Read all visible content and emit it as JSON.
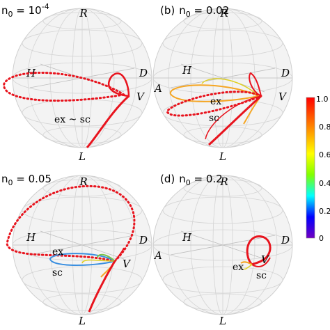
{
  "panels": [
    {
      "label": "",
      "n0_prefix": "n",
      "n0_sub": "0",
      "n0_value": " = 10",
      "n0_sup": "-4",
      "axes": {
        "R": "R",
        "L": "L",
        "H": "H",
        "D": "D",
        "V": "V",
        "A": ""
      },
      "curve_labels": [
        "ex ~ sc"
      ]
    },
    {
      "label": "(b)",
      "n0_prefix": "n",
      "n0_sub": "0",
      "n0_value": " = 0.02",
      "n0_sup": "",
      "axes": {
        "R": "R",
        "L": "L",
        "H": "H",
        "D": "D",
        "V": "V",
        "A": "A"
      },
      "curve_labels": [
        "ex",
        "sc"
      ]
    },
    {
      "label": "",
      "n0_prefix": "n",
      "n0_sub": "0",
      "n0_value": " = 0.05",
      "n0_sup": "",
      "axes": {
        "R": "R",
        "L": "L",
        "H": "H",
        "D": "D",
        "V": "V",
        "A": ""
      },
      "curve_labels": [
        "ex",
        "sc"
      ]
    },
    {
      "label": "(d)",
      "n0_prefix": "n",
      "n0_sub": "0",
      "n0_value": " = 0.2",
      "n0_sup": "",
      "axes": {
        "R": "R",
        "L": "L",
        "H": "H",
        "D": "D",
        "V": "V",
        "A": "A"
      },
      "curve_labels": [
        "ex",
        "V",
        "sc"
      ]
    }
  ],
  "colorbar": {
    "ticks": [
      "1.0",
      "0.8",
      "0.6",
      "0.4",
      "0.2",
      "0"
    ],
    "colors": [
      "#ff0000",
      "#ff8000",
      "#ffff00",
      "#80ff00",
      "#00ffff",
      "#0000ff",
      "#7000c0"
    ]
  },
  "curve_colors": {
    "main": "#e8141e",
    "orange": "#f5a623",
    "yellow": "#e0d020",
    "green": "#7cc24a",
    "blue": "#3a8fe0"
  }
}
